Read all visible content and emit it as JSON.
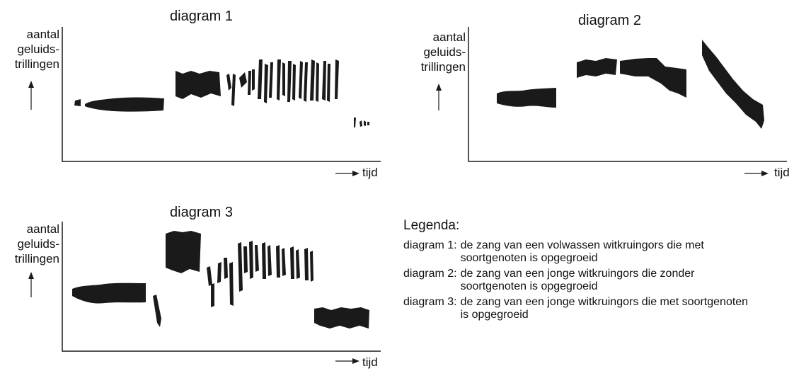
{
  "diagrams": [
    {
      "title": "diagram 1",
      "ylabel": [
        "aantal",
        "geluids-",
        "trillingen"
      ],
      "xlabel": "tijd"
    },
    {
      "title": "diagram 2",
      "ylabel": [
        "aantal",
        "geluids-",
        "trillingen"
      ],
      "xlabel": "tijd"
    },
    {
      "title": "diagram 3",
      "ylabel": [
        "aantal",
        "geluids-",
        "trillingen"
      ],
      "xlabel": "tijd"
    }
  ],
  "legend": {
    "title": "Legenda:",
    "items": [
      {
        "key": "diagram 1:",
        "text": "de zang van een volwassen witkruingors die met soortgenoten is opgegroeid"
      },
      {
        "key": "diagram 2:",
        "text": "de zang van een jonge witkruingors die zonder soortgenoten is opgegroeid"
      },
      {
        "key": "diagram 3:",
        "text": "de zang van een jonge witkruingors die met soortgenoten is opgegroeid"
      }
    ]
  },
  "colors": {
    "ink": "#1a1a1a"
  }
}
